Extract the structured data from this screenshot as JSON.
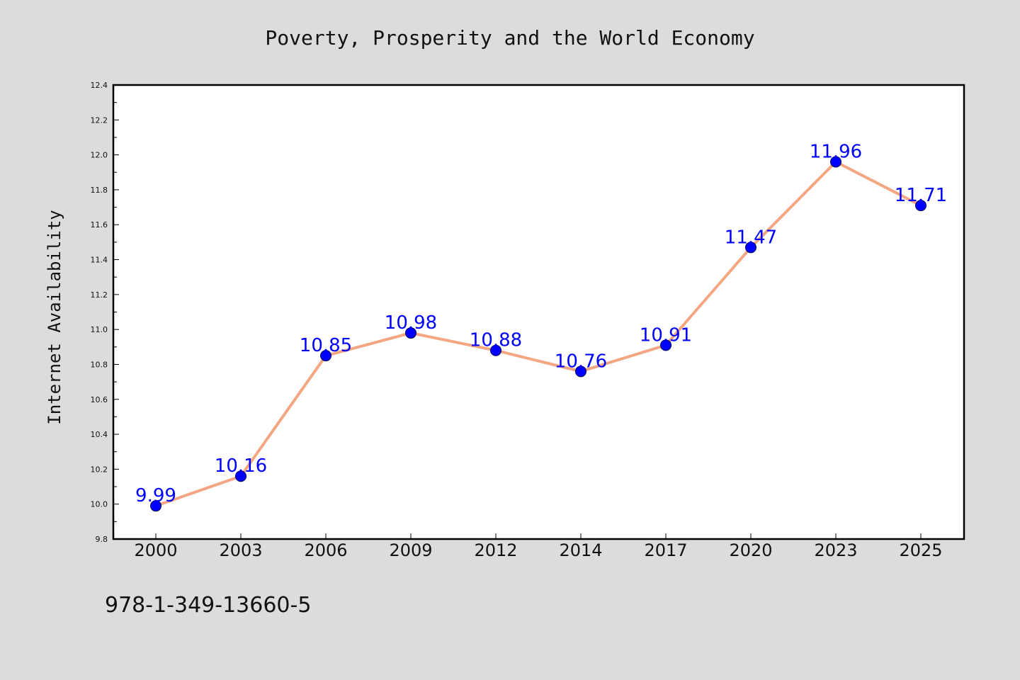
{
  "chart_data": {
    "type": "line",
    "title": "Poverty, Prosperity and the World Economy",
    "ylabel": "Internet Availability",
    "xlabel": "",
    "categories": [
      "2000",
      "2003",
      "2006",
      "2009",
      "2012",
      "2014",
      "2017",
      "2020",
      "2023",
      "2025"
    ],
    "values": [
      9.99,
      10.16,
      10.85,
      10.98,
      10.88,
      10.76,
      10.91,
      11.47,
      11.96,
      11.71
    ],
    "data_labels": [
      "9.99",
      "10.16",
      "10.85",
      "10.98",
      "10.88",
      "10.76",
      "10.91",
      "11.47",
      "11.96",
      "11.71"
    ],
    "ylim": [
      9.8,
      12.4
    ],
    "y_ticks": [
      "9.8",
      "10.0",
      "10.2",
      "10.4",
      "10.6",
      "10.8",
      "11.0",
      "11.2",
      "11.4",
      "11.6",
      "11.8",
      "12.0",
      "12.2",
      "12.4"
    ],
    "grid": false,
    "legend": "none",
    "colors": {
      "line": "#f4a582",
      "marker": "#0000ff",
      "label": "#0000ff",
      "background": "#dcdcdc",
      "plot_background": "#ffffff"
    }
  },
  "footer": {
    "isbn": "978-1-349-13660-5"
  }
}
